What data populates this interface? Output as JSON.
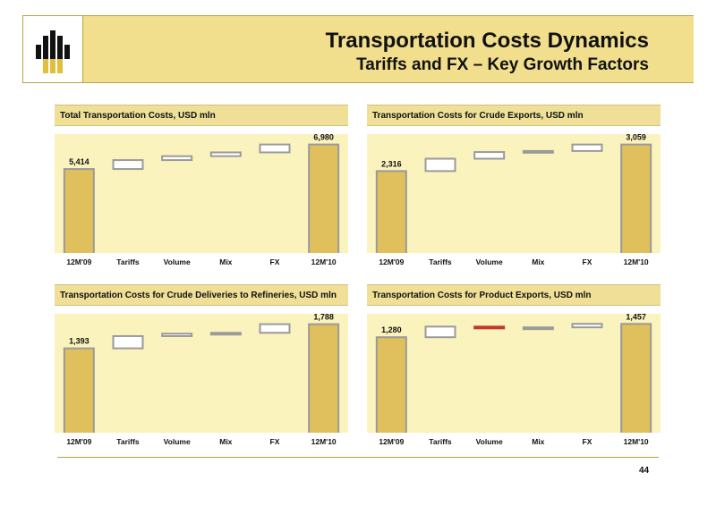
{
  "header": {
    "title": "Transportation Costs Dynamics",
    "subtitle": "Tariffs and FX – Key Growth Factors",
    "logo_icon": "oil-drop-logo-icon"
  },
  "colors": {
    "banner": "#f1df8e",
    "panel_title": "#efdf97",
    "plot_bg": "#fbf3bd",
    "bar_fill": "#dfc05c",
    "bar_border": "#9a9a9a",
    "negative_delta": "#c0392b"
  },
  "page_number": "44",
  "chart_data": [
    {
      "type": "waterfall",
      "title": "Total Transportation Costs, USD mln",
      "categories": [
        "12M'09",
        "Tariffs",
        "Volume",
        "Mix",
        "FX",
        "12M'10"
      ],
      "start": 5414,
      "end": 6980,
      "deltas": [
        570,
        251,
        240,
        505
      ],
      "labels": [
        "5,414",
        "6,980"
      ],
      "ylim": [
        0,
        7300
      ]
    },
    {
      "type": "waterfall",
      "title": "Transportation Costs for Crude Exports, USD mln",
      "categories": [
        "12M'09",
        "Tariffs",
        "Volume",
        "Mix",
        "FX",
        "12M'10"
      ],
      "start": 2316,
      "end": 3059,
      "deltas": [
        346,
        186,
        30,
        181
      ],
      "labels": [
        "2,316",
        "3,059"
      ],
      "ylim": [
        0,
        3200
      ]
    },
    {
      "type": "waterfall",
      "title": "Transportation Costs for Crude Deliveries to Refineries, USD mln",
      "categories": [
        "12M'09",
        "Tariffs",
        "Volume",
        "Mix",
        "FX",
        "12M'10"
      ],
      "start": 1393,
      "end": 1788,
      "deltas": [
        200,
        40,
        14,
        141
      ],
      "labels": [
        "1,393",
        "1,788"
      ],
      "ylim": [
        0,
        1870
      ]
    },
    {
      "type": "waterfall",
      "title": "Transportation Costs for Product Exports, USD mln",
      "categories": [
        "12M'09",
        "Tariffs",
        "Volume",
        "Mix",
        "FX",
        "12M'10"
      ],
      "start": 1280,
      "end": 1457,
      "deltas": [
        141,
        -14,
        4,
        46
      ],
      "labels": [
        "1,280",
        "1,457"
      ],
      "ylim": [
        0,
        1520
      ]
    }
  ]
}
